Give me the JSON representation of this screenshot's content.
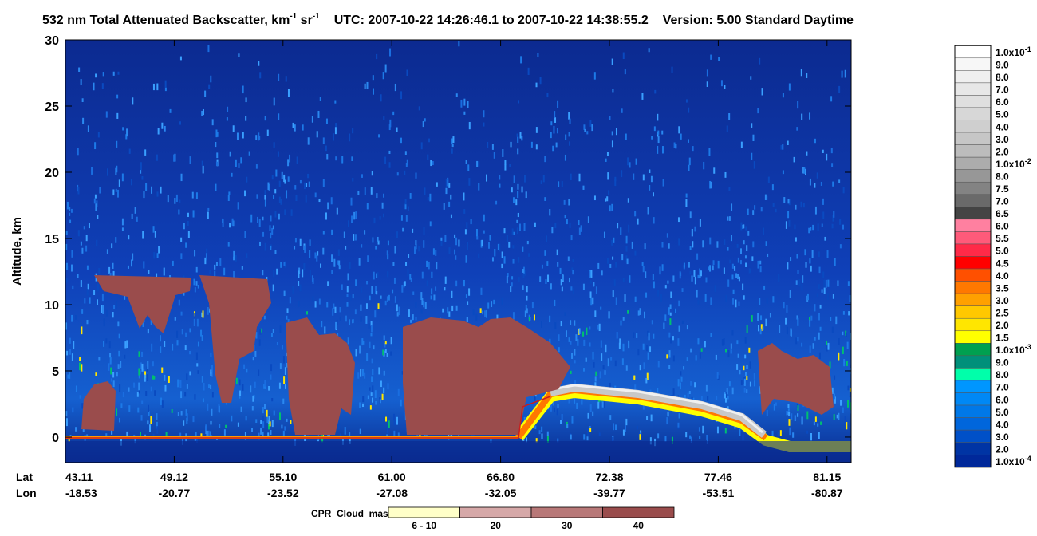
{
  "chart_data": {
    "type": "curtain",
    "title_parts": [
      "532 nm Total Attenuated Backscatter, km",
      "-1",
      " sr",
      "-1",
      "UTC:  2007-10-22 14:26:46.1  to  2007-10-22 14:38:55.2",
      "Version: 5.00  Standard  Daytime"
    ],
    "y_label": "Altitude, km",
    "ylim": [
      -1.93,
      30
    ],
    "yticks": [
      0,
      5,
      10,
      15,
      20,
      25,
      30
    ],
    "row_labels": [
      "Lat",
      "Lon"
    ],
    "categories": [
      {
        "lat": "43.11",
        "lon": "-18.53"
      },
      {
        "lat": "49.12",
        "lon": "-20.77"
      },
      {
        "lat": "55.10",
        "lon": "-23.52"
      },
      {
        "lat": "61.00",
        "lon": "-27.08"
      },
      {
        "lat": "66.80",
        "lon": "-32.05"
      },
      {
        "lat": "72.38",
        "lon": "-39.77"
      },
      {
        "lat": "77.46",
        "lon": "-53.51"
      },
      {
        "lat": "81.15",
        "lon": "-80.87"
      }
    ],
    "colorbar": [
      {
        "label": "1.0x10",
        "exp": "-1",
        "color": "#ffffff"
      },
      {
        "label": "9.0",
        "color": "#f7f7f7"
      },
      {
        "label": "8.0",
        "color": "#efefef"
      },
      {
        "label": "7.0",
        "color": "#e7e7e7"
      },
      {
        "label": "6.0",
        "color": "#dfdfdf"
      },
      {
        "label": "5.0",
        "color": "#d7d7d7"
      },
      {
        "label": "4.0",
        "color": "#cfcfcf"
      },
      {
        "label": "3.0",
        "color": "#c6c6c6"
      },
      {
        "label": "2.0",
        "color": "#bcbcbc"
      },
      {
        "label": "1.0x10",
        "exp": "-2",
        "color": "#acacac"
      },
      {
        "label": "8.0",
        "color": "#979797"
      },
      {
        "label": "7.5",
        "color": "#838383"
      },
      {
        "label": "7.0",
        "color": "#6a6a6a"
      },
      {
        "label": "6.5",
        "color": "#444444"
      },
      {
        "label": "6.0",
        "color": "#ff80a0"
      },
      {
        "label": "5.5",
        "color": "#ff5a7a"
      },
      {
        "label": "5.0",
        "color": "#ff2a48"
      },
      {
        "label": "4.5",
        "color": "#ff0000"
      },
      {
        "label": "4.0",
        "color": "#ff5000"
      },
      {
        "label": "3.5",
        "color": "#ff7800"
      },
      {
        "label": "3.0",
        "color": "#ffa000"
      },
      {
        "label": "2.5",
        "color": "#ffc800"
      },
      {
        "label": "2.0",
        "color": "#ffe600"
      },
      {
        "label": "1.5",
        "color": "#ffff00"
      },
      {
        "label": "1.0x10",
        "exp": "-3",
        "color": "#00a050"
      },
      {
        "label": "9.0",
        "color": "#00907a"
      },
      {
        "label": "8.0",
        "color": "#00ffaa"
      },
      {
        "label": "7.0",
        "color": "#0096ff"
      },
      {
        "label": "6.0",
        "color": "#0088f5"
      },
      {
        "label": "5.0",
        "color": "#0078e8"
      },
      {
        "label": "4.0",
        "color": "#0066dc"
      },
      {
        "label": "3.0",
        "color": "#0050c8"
      },
      {
        "label": "2.0",
        "color": "#0034a4"
      },
      {
        "label": "1.0x10",
        "exp": "-4",
        "color": "#00289a"
      }
    ],
    "legend_title": "CPR_Cloud_mask",
    "legend": [
      {
        "label": "6 - 10",
        "color": "#ffffc8"
      },
      {
        "label": "20",
        "color": "#d6a8a8"
      },
      {
        "label": "30",
        "color": "#b87878"
      },
      {
        "label": "40",
        "color": "#9a4c4c"
      }
    ]
  }
}
